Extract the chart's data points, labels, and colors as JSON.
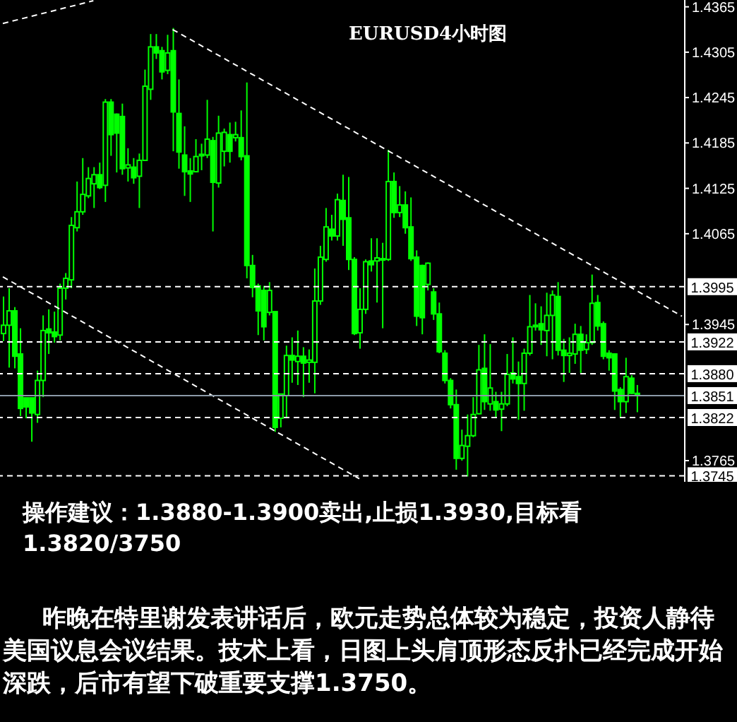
{
  "chart_data": {
    "type": "candlestick",
    "title": "EURUSD4小时图",
    "categories": [
      null,
      null,
      null,
      null,
      null,
      null,
      null,
      null,
      null,
      null,
      null,
      null,
      null,
      null,
      null,
      null,
      null,
      null,
      null,
      null,
      null,
      null,
      null,
      null,
      null,
      null,
      null,
      null,
      null,
      null,
      null,
      null,
      null,
      null,
      null,
      null,
      null,
      null,
      null,
      null,
      null,
      null,
      null,
      null,
      null,
      null,
      null,
      null,
      null,
      null,
      null,
      null,
      null,
      null,
      null,
      null,
      null,
      null,
      null,
      null,
      null,
      null,
      null,
      null,
      null,
      null,
      null,
      null,
      null,
      null,
      null,
      null,
      null,
      null,
      null,
      null,
      null,
      null,
      null,
      null,
      null,
      null,
      null,
      null,
      null,
      null,
      null,
      null,
      null,
      null,
      null,
      null,
      null,
      null,
      null,
      null,
      null,
      null,
      null,
      null,
      null,
      null,
      null,
      null,
      null,
      null,
      null,
      null,
      null,
      null,
      null,
      null,
      null,
      null,
      null,
      null,
      null,
      null,
      null,
      null,
      null
    ],
    "color": "#00ff00",
    "ohlc": [
      [
        1.3933,
        1.3982,
        1.3923,
        1.3944
      ],
      [
        1.3944,
        1.3993,
        1.3888,
        1.3963
      ],
      [
        1.3963,
        1.3968,
        1.3887,
        1.3903
      ],
      [
        1.3906,
        1.394,
        1.3824,
        1.3834
      ],
      [
        1.3848,
        1.3848,
        1.3821,
        1.3836
      ],
      [
        1.3848,
        1.3848,
        1.379,
        1.3828
      ],
      [
        1.3826,
        1.3884,
        1.3815,
        1.3871
      ],
      [
        1.3871,
        1.3957,
        1.3849,
        1.3937
      ],
      [
        1.3939,
        1.3965,
        1.3906,
        1.3934
      ],
      [
        1.3935,
        1.3962,
        1.3921,
        1.3929
      ],
      [
        1.3931,
        1.3999,
        1.3924,
        1.3993
      ],
      [
        1.3993,
        1.4013,
        1.3978,
        1.4006
      ],
      [
        1.4004,
        1.4087,
        1.3993,
        1.4076
      ],
      [
        1.4073,
        1.4134,
        1.4068,
        1.4094
      ],
      [
        1.4094,
        1.4165,
        1.409,
        1.4117
      ],
      [
        1.4115,
        1.4153,
        1.4112,
        1.4138
      ],
      [
        1.4131,
        1.4153,
        1.4099,
        1.4143
      ],
      [
        1.4143,
        1.4159,
        1.4124,
        1.4126
      ],
      [
        1.4129,
        1.4243,
        1.4107,
        1.4239
      ],
      [
        1.4239,
        1.4243,
        1.4168,
        1.4196
      ],
      [
        1.4223,
        1.4224,
        1.4146,
        1.4198
      ],
      [
        1.422,
        1.4237,
        1.4143,
        1.4151
      ],
      [
        1.4152,
        1.4178,
        1.4134,
        1.4156
      ],
      [
        1.4153,
        1.4165,
        1.4131,
        1.4139
      ],
      [
        1.4141,
        1.4171,
        1.4099,
        1.4162
      ],
      [
        1.4162,
        1.4282,
        1.4161,
        1.426
      ],
      [
        1.4256,
        1.4329,
        1.4242,
        1.4312
      ],
      [
        1.4312,
        1.4329,
        1.4296,
        1.4304
      ],
      [
        1.4307,
        1.4312,
        1.4269,
        1.4279
      ],
      [
        1.4281,
        1.4328,
        1.4276,
        1.4304
      ],
      [
        1.4307,
        1.4337,
        1.4174,
        1.4226
      ],
      [
        1.4224,
        1.4269,
        1.4151,
        1.4173
      ],
      [
        1.4169,
        1.4207,
        1.4115,
        1.4147
      ],
      [
        1.4148,
        1.4165,
        1.4107,
        1.4144
      ],
      [
        1.4147,
        1.419,
        1.4146,
        1.4167
      ],
      [
        1.4168,
        1.4184,
        1.4149,
        1.417
      ],
      [
        1.4169,
        1.4242,
        1.4165,
        1.419
      ],
      [
        1.4188,
        1.4193,
        1.4068,
        1.4133
      ],
      [
        1.4132,
        1.4221,
        1.4126,
        1.4198
      ],
      [
        1.4174,
        1.4204,
        1.4154,
        1.4199
      ],
      [
        1.4196,
        1.4212,
        1.4159,
        1.4174
      ],
      [
        1.4192,
        1.4213,
        1.4187,
        1.4196
      ],
      [
        1.4192,
        1.4228,
        1.4162,
        1.4167
      ],
      [
        1.4168,
        1.4265,
        1.4006,
        1.4023
      ],
      [
        1.4023,
        1.4037,
        1.3981,
        1.3994
      ],
      [
        1.3996,
        1.3999,
        1.3931,
        1.3963
      ],
      [
        1.399,
        1.3996,
        1.3924,
        1.3942
      ],
      [
        1.3961,
        1.4001,
        1.3957,
        1.399
      ],
      [
        1.3962,
        1.3962,
        1.3803,
        1.3809
      ],
      [
        1.3821,
        1.3853,
        1.3809,
        1.3853
      ],
      [
        1.3851,
        1.3917,
        1.3821,
        1.3904
      ],
      [
        1.3904,
        1.3928,
        1.3868,
        1.3898
      ],
      [
        1.3896,
        1.3937,
        1.3865,
        1.3903
      ],
      [
        1.3903,
        1.3915,
        1.3849,
        1.3894
      ],
      [
        1.3895,
        1.3912,
        1.3868,
        1.3898
      ],
      [
        1.3895,
        1.4019,
        1.3854,
        1.3976
      ],
      [
        1.3976,
        1.4049,
        1.3971,
        1.4034
      ],
      [
        1.4031,
        1.4099,
        1.4028,
        1.4074
      ],
      [
        1.4071,
        1.409,
        1.4056,
        1.4062
      ],
      [
        1.4062,
        1.4118,
        1.4056,
        1.411
      ],
      [
        1.4109,
        1.4143,
        1.4049,
        1.4084
      ],
      [
        1.4086,
        1.414,
        1.4017,
        1.4031
      ],
      [
        1.4031,
        1.4034,
        1.3931,
        1.3933
      ],
      [
        1.3934,
        1.3993,
        1.3913,
        1.3965
      ],
      [
        1.3965,
        1.4031,
        1.3959,
        1.4028
      ],
      [
        1.4029,
        1.4059,
        1.4015,
        1.4024
      ],
      [
        1.4029,
        1.4059,
        1.3974,
        1.4033
      ],
      [
        1.4032,
        1.4053,
        1.394,
        1.4031
      ],
      [
        1.4031,
        1.4176,
        1.4029,
        1.4134
      ],
      [
        1.4134,
        1.4146,
        1.4086,
        1.4093
      ],
      [
        1.4093,
        1.4128,
        1.4087,
        1.4103
      ],
      [
        1.4103,
        1.4121,
        1.4065,
        1.4073
      ],
      [
        1.4074,
        1.4113,
        1.4029,
        1.4032
      ],
      [
        1.4034,
        1.4043,
        1.3943,
        1.3956
      ],
      [
        1.4023,
        1.4024,
        1.3932,
        1.3954
      ],
      [
        1.3998,
        1.4027,
        1.399,
        1.4026
      ],
      [
        1.3988,
        1.3993,
        1.3951,
        1.3959
      ],
      [
        1.3959,
        1.3974,
        1.3907,
        1.3909
      ],
      [
        1.3907,
        1.3911,
        1.3867,
        1.3871
      ],
      [
        1.3871,
        1.3874,
        1.3834,
        1.3839
      ],
      [
        1.3839,
        1.3859,
        1.3753,
        1.3768
      ],
      [
        1.3768,
        1.3806,
        1.3765,
        1.3785
      ],
      [
        1.3784,
        1.3826,
        1.3744,
        1.3798
      ],
      [
        1.3798,
        1.3849,
        1.3796,
        1.3826
      ],
      [
        1.3827,
        1.3918,
        1.3826,
        1.3885
      ],
      [
        1.3887,
        1.3932,
        1.3832,
        1.3843
      ],
      [
        1.384,
        1.3919,
        1.3831,
        1.3861
      ],
      [
        1.3843,
        1.3856,
        1.3821,
        1.3832
      ],
      [
        1.3833,
        1.3856,
        1.3804,
        1.384
      ],
      [
        1.384,
        1.3906,
        1.3837,
        1.3879
      ],
      [
        1.3881,
        1.3928,
        1.3867,
        1.3873
      ],
      [
        1.3876,
        1.3896,
        1.3819,
        1.3867
      ],
      [
        1.3867,
        1.3913,
        1.3831,
        1.3907
      ],
      [
        1.3907,
        1.3984,
        1.3904,
        1.3942
      ],
      [
        1.3942,
        1.3973,
        1.3937,
        1.3944
      ],
      [
        1.3946,
        1.3969,
        1.3918,
        1.3938
      ],
      [
        1.3937,
        1.3987,
        1.3903,
        1.3957
      ],
      [
        1.3957,
        1.399,
        1.3899,
        1.3984
      ],
      [
        1.3982,
        1.4001,
        1.3904,
        1.3911
      ],
      [
        1.3911,
        1.3926,
        1.3869,
        1.3904
      ],
      [
        1.3904,
        1.3928,
        1.3881,
        1.3907
      ],
      [
        1.3906,
        1.3946,
        1.3893,
        1.3932
      ],
      [
        1.3932,
        1.3943,
        1.3881,
        1.3911
      ],
      [
        1.3912,
        1.3932,
        1.3906,
        1.3921
      ],
      [
        1.3921,
        1.4011,
        1.3918,
        1.3973
      ],
      [
        1.3974,
        1.3984,
        1.3937,
        1.3943
      ],
      [
        1.3946,
        1.3949,
        1.3899,
        1.3903
      ],
      [
        1.3907,
        1.3911,
        1.3884,
        1.3901
      ],
      [
        1.3906,
        1.3907,
        1.3832,
        1.3857
      ],
      [
        1.3859,
        1.3862,
        1.3823,
        1.3843
      ],
      [
        1.3843,
        1.3901,
        1.3828,
        1.3876
      ],
      [
        1.3874,
        1.3878,
        1.3853,
        1.3854
      ],
      [
        1.3854,
        1.3865,
        1.3829,
        1.3851
      ],
      null,
      null,
      null,
      null,
      null,
      null,
      null,
      null
    ],
    "series": [
      {
        "type": "line",
        "color": "#ffffff",
        "line_style": "dashed",
        "values": [
          1.4343,
          null,
          null,
          null,
          null,
          null,
          null,
          null,
          null,
          null,
          null,
          null,
          null,
          null,
          null,
          null,
          1.4373,
          null,
          null,
          null,
          null,
          null,
          null,
          null,
          null,
          null,
          null,
          null,
          null,
          null,
          null,
          null,
          null,
          null,
          null,
          null,
          null,
          null,
          null,
          null,
          null,
          null,
          null,
          null,
          null,
          null,
          null,
          null,
          null,
          null,
          null,
          null,
          null,
          null,
          null,
          null,
          null,
          null,
          null,
          null,
          null,
          null,
          null,
          null,
          null,
          null,
          null,
          null,
          null,
          null,
          null,
          null,
          null,
          null,
          null,
          null,
          null,
          null,
          null,
          null,
          null,
          null,
          null,
          null,
          null,
          null,
          null,
          null,
          null,
          null,
          null,
          null,
          null,
          null,
          null,
          null,
          null,
          null,
          null,
          null,
          null,
          null,
          null,
          null,
          null,
          null,
          null,
          null,
          null,
          null,
          null,
          null,
          null,
          null,
          null,
          null,
          null,
          null,
          null,
          null,
          null
        ]
      },
      {
        "type": "line",
        "color": "#ffffff",
        "line_style": "dashed",
        "values": [
          null,
          null,
          null,
          null,
          null,
          null,
          null,
          null,
          null,
          null,
          null,
          null,
          null,
          null,
          null,
          null,
          null,
          null,
          null,
          null,
          null,
          null,
          null,
          null,
          null,
          null,
          null,
          null,
          null,
          null,
          1.4335,
          null,
          null,
          null,
          null,
          null,
          null,
          null,
          null,
          null,
          null,
          null,
          null,
          null,
          null,
          null,
          null,
          null,
          null,
          null,
          null,
          null,
          null,
          null,
          null,
          null,
          null,
          null,
          null,
          null,
          null,
          null,
          null,
          null,
          null,
          null,
          null,
          null,
          null,
          null,
          null,
          null,
          null,
          null,
          null,
          null,
          null,
          null,
          null,
          null,
          null,
          null,
          null,
          null,
          null,
          null,
          null,
          null,
          null,
          null,
          null,
          null,
          null,
          null,
          null,
          null,
          null,
          null,
          null,
          null,
          null,
          null,
          null,
          null,
          null,
          null,
          null,
          null,
          null,
          null,
          null,
          null,
          null,
          null,
          null,
          null,
          null,
          null,
          null,
          null,
          1.3956
        ]
      },
      {
        "type": "line",
        "color": "#ffffff",
        "line_style": "dashed",
        "values": [
          1.4008,
          null,
          null,
          null,
          null,
          null,
          null,
          null,
          null,
          null,
          null,
          null,
          null,
          null,
          null,
          null,
          null,
          null,
          null,
          null,
          null,
          null,
          null,
          null,
          null,
          null,
          null,
          null,
          null,
          null,
          null,
          null,
          null,
          null,
          null,
          null,
          null,
          null,
          null,
          null,
          null,
          null,
          null,
          null,
          null,
          null,
          null,
          null,
          null,
          null,
          null,
          null,
          null,
          null,
          null,
          null,
          null,
          null,
          null,
          null,
          null,
          null,
          null,
          1.3741,
          null,
          null,
          null,
          null,
          null,
          null,
          null,
          null,
          null,
          null,
          null,
          null,
          null,
          null,
          null,
          null,
          null,
          null,
          null,
          null,
          null,
          null,
          null,
          null,
          null,
          null,
          null,
          null,
          null,
          null,
          null,
          null,
          null,
          null,
          null,
          null,
          null,
          null,
          null,
          null,
          null,
          null,
          null,
          null,
          null,
          null,
          null,
          null,
          null,
          null,
          null,
          null,
          null,
          null,
          null,
          null,
          null
        ]
      }
    ],
    "ylim": [
      1.3737,
      1.4374
    ],
    "yticks": [
      1.4365,
      1.4305,
      1.4245,
      1.4185,
      1.4125,
      1.4065,
      1.3945,
      1.3765
    ],
    "tick_labels": "y",
    "ref_lines": [
      {
        "axis": "y",
        "value": 1.3995,
        "label": "1.3995",
        "color": "#ffffff",
        "line_style": "dashed"
      },
      {
        "axis": "y",
        "value": 1.3922,
        "label": "1.3922",
        "color": "#ffffff",
        "line_style": "dashed"
      },
      {
        "axis": "y",
        "value": 1.388,
        "label": "1.3880",
        "color": "#ffffff",
        "line_style": "dashed"
      },
      {
        "axis": "y",
        "value": 1.3851,
        "label": "1.3851",
        "color": "#8c9aa8",
        "line_style": "solid"
      },
      {
        "axis": "y",
        "value": 1.3822,
        "label": "1.3822",
        "color": "#ffffff",
        "line_style": "dashed"
      },
      {
        "axis": "y",
        "value": 1.3745,
        "label": "1.3745",
        "color": "#ffffff",
        "line_style": "dashed"
      }
    ],
    "annotations": [
      "操作建议：1.3880-1.3900卖出,止损1.3930,目标看1.3820/3750",
      "昨晚在特里谢发表讲话后，欧元走势总体较为稳定，投资人静待美国议息会议结果。技术上看，日图上头肩顶形态反扑已经完成开始深跌，后市有望下破重要支撑1.3750。"
    ]
  }
}
